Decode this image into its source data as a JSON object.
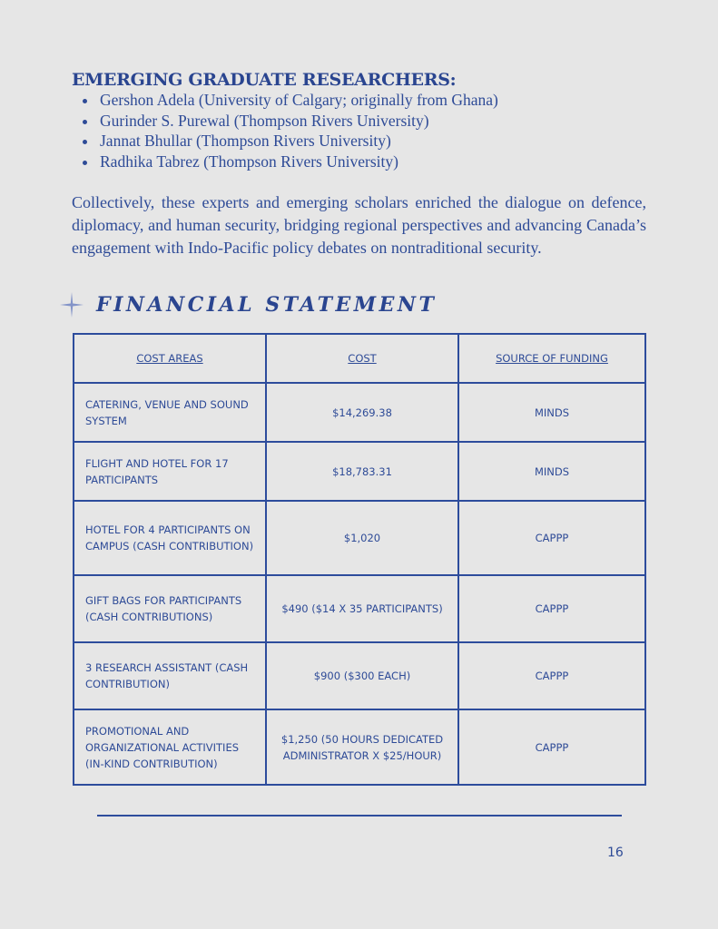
{
  "researchers": {
    "heading": "EMERGING GRADUATE RESEARCHERS:",
    "items": [
      "Gershon Adela (University of Calgary; originally from Ghana)",
      "Gurinder S. Purewal (Thompson Rivers University)",
      "Jannat Bhullar (Thompson Rivers University)",
      "Radhika Tabrez (Thompson Rivers University)"
    ]
  },
  "paragraph": "Collectively, these experts and emerging scholars enriched the dialogue on defence, diplomacy, and human security, bridging regional perspectives and advancing Canada’s engagement with Indo-Pacific policy debates on nontraditional security.",
  "financial": {
    "title": "FINANCIAL STATEMENT",
    "icon": "sparkle-star-icon",
    "headers": [
      "COST AREAS",
      "COST",
      "SOURCE OF FUNDING"
    ],
    "rows": [
      [
        "CATERING, VENUE AND SOUND SYSTEM",
        "$14,269.38",
        "MINDS"
      ],
      [
        "FLIGHT AND HOTEL FOR 17 PARTICIPANTS",
        "$18,783.31",
        "MINDS"
      ],
      [
        "HOTEL FOR 4 PARTICIPANTS ON CAMPUS (CASH CONTRIBUTION)",
        "$1,020",
        "CAPPP"
      ],
      [
        "GIFT BAGS FOR PARTICIPANTS (CASH CONTRIBUTIONS)",
        "$490 ($14 X 35 PARTICIPANTS)",
        "CAPPP"
      ],
      [
        "3 RESEARCH ASSISTANT (CASH CONTRIBUTION)",
        "$900 ($300 EACH)",
        "CAPPP"
      ],
      [
        "PROMOTIONAL AND ORGANIZATIONAL ACTIVITIES (IN-KIND CONTRIBUTION)",
        "$1,250 (50 HOURS DEDICATED ADMINISTRATOR X $25/HOUR)",
        "CAPPP"
      ]
    ]
  },
  "page_number": "16",
  "colors": {
    "accent": "#2d4c9c",
    "background": "#e6e6e6"
  }
}
